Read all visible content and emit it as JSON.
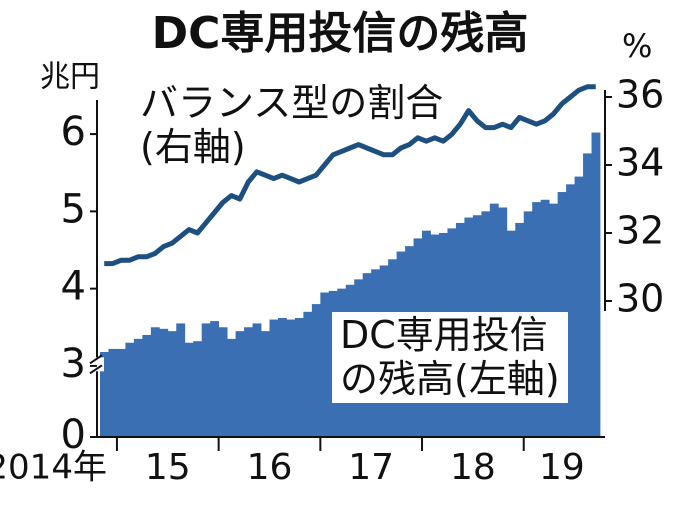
{
  "chart_data": {
    "type": "bar_line",
    "title": "DC専用投信の残高",
    "y_unit": "兆円",
    "y2_unit": "%",
    "categories": [
      "2014年",
      null,
      "15",
      null,
      null,
      null,
      null,
      null,
      null,
      null,
      null,
      null,
      null,
      null,
      "16",
      null,
      null,
      null,
      null,
      null,
      null,
      null,
      null,
      null,
      null,
      null,
      "17",
      null,
      null,
      null,
      null,
      null,
      null,
      null,
      null,
      null,
      null,
      null,
      "18",
      null,
      null,
      null,
      null,
      null,
      null,
      null,
      null,
      null,
      null,
      null,
      "19",
      null,
      null,
      null,
      null,
      null,
      null,
      null,
      null
    ],
    "ylim": [
      0,
      6.7
    ],
    "ybreak": [
      0.85,
      2.93
    ],
    "yticks": [
      0,
      3,
      4,
      5,
      6
    ],
    "y2lim": [
      26,
      36.5
    ],
    "y2ticks": [
      30,
      32,
      34,
      36
    ],
    "series": [
      {
        "name": "DC専用投信\nの残高(左軸)",
        "kind": "bar",
        "color": "#3b6fb3",
        "values": [
          3.18,
          3.22,
          3.22,
          3.3,
          3.35,
          3.4,
          3.5,
          3.48,
          3.45,
          3.55,
          3.3,
          3.32,
          3.55,
          3.58,
          3.5,
          3.35,
          3.45,
          3.5,
          3.55,
          3.45,
          3.6,
          3.62,
          3.6,
          3.62,
          3.7,
          3.8,
          3.95,
          3.97,
          4.0,
          4.05,
          4.12,
          4.2,
          4.25,
          4.3,
          4.38,
          4.48,
          4.55,
          4.65,
          4.75,
          4.7,
          4.72,
          4.78,
          4.85,
          4.92,
          4.95,
          5.0,
          5.1,
          5.05,
          4.75,
          4.85,
          5.0,
          5.12,
          5.15,
          5.1,
          5.25,
          5.35,
          5.45,
          5.75,
          6.02
        ]
      },
      {
        "name": "バランス型の割合\n(右軸)",
        "kind": "line",
        "axis": "y2",
        "color": "#1d4f80",
        "values": [
          31.1,
          31.1,
          31.2,
          31.2,
          31.3,
          31.3,
          31.4,
          31.6,
          31.7,
          31.9,
          32.1,
          32.0,
          32.3,
          32.6,
          32.9,
          33.1,
          33.0,
          33.5,
          33.8,
          33.7,
          33.6,
          33.7,
          33.6,
          33.5,
          33.6,
          33.7,
          34.0,
          34.3,
          34.4,
          34.5,
          34.6,
          34.5,
          34.4,
          34.3,
          34.3,
          34.5,
          34.6,
          34.8,
          34.7,
          34.8,
          34.7,
          34.9,
          35.2,
          35.6,
          35.3,
          35.1,
          35.1,
          35.2,
          35.1,
          35.4,
          35.3,
          35.2,
          35.3,
          35.5,
          35.8,
          36.0,
          36.2,
          36.3,
          36.3
        ]
      }
    ]
  }
}
